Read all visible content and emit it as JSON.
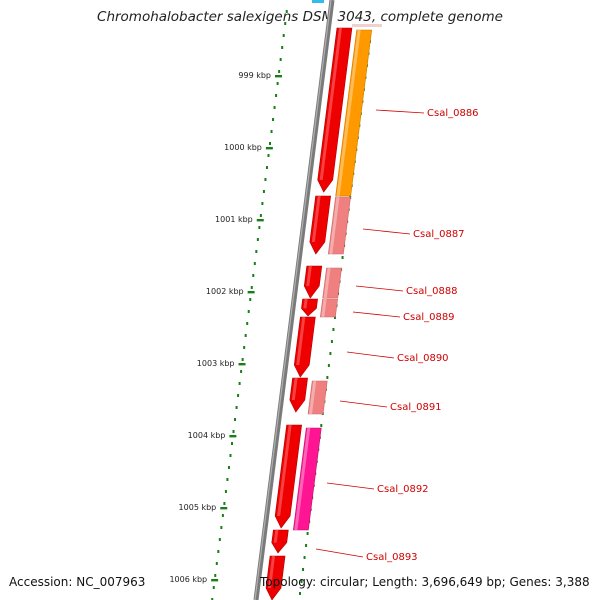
{
  "title": "Chromohalobacter salexigens DSM 3043, complete genome",
  "accession": "Accession: NC_007963",
  "summary": "Topology: circular; Length: 3,696,649 bp; Genes: 3,388",
  "ruler": [
    {
      "label": "999 kbp"
    },
    {
      "label": "1000 kbp"
    },
    {
      "label": "1001 kbp"
    },
    {
      "label": "1002 kbp"
    },
    {
      "label": "1003 kbp"
    },
    {
      "label": "1004 kbp"
    },
    {
      "label": "1005 kbp"
    },
    {
      "label": "1006 kbp"
    }
  ],
  "genes": [
    {
      "name": "Csal_0886"
    },
    {
      "name": "Csal_0887"
    },
    {
      "name": "Csal_0888"
    },
    {
      "name": "Csal_0889"
    },
    {
      "name": "Csal_0890"
    },
    {
      "name": "Csal_0891"
    },
    {
      "name": "Csal_0892"
    },
    {
      "name": "Csal_0893"
    }
  ],
  "colors": {
    "backbone": "#7a7a7a",
    "cds": "#ee0000",
    "gene_light": "#f08080",
    "gene_orange": "#ff9900",
    "gene_magenta": "#ff1493",
    "tick": "#1a7f1a",
    "label": "#d00000"
  }
}
